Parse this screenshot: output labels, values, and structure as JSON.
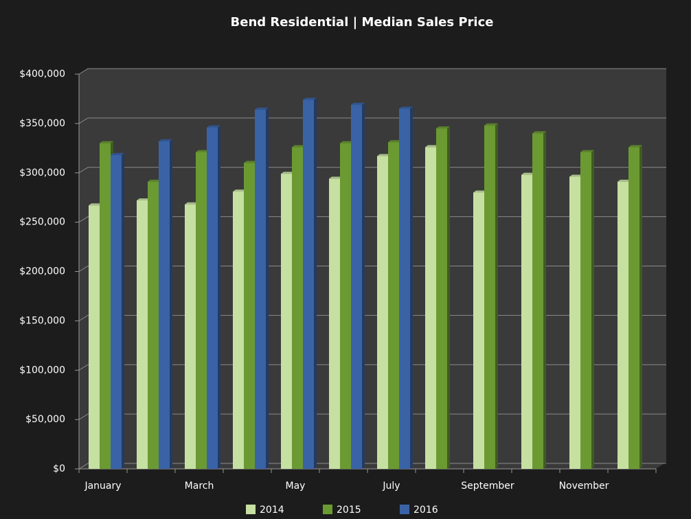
{
  "chart_data": {
    "type": "bar",
    "title": "Bend Residential | Median Sales Price",
    "categories": [
      "January",
      null,
      "March",
      null,
      "May",
      null,
      "July",
      null,
      "September",
      null,
      "November",
      null
    ],
    "series": [
      {
        "name": "2014",
        "color": "#c6e0a2",
        "values": [
          267000,
          272000,
          268000,
          281000,
          299000,
          294000,
          317000,
          326000,
          280000,
          298000,
          296000,
          291000
        ]
      },
      {
        "name": "2015",
        "color": "#6b9a33",
        "values": [
          330000,
          291000,
          321000,
          310000,
          326000,
          330000,
          331000,
          345000,
          348000,
          340000,
          321000,
          326000
        ]
      },
      {
        "name": "2016",
        "color": "#3a63a6",
        "values": [
          318000,
          332000,
          346000,
          364000,
          374000,
          369000,
          365000,
          null,
          null,
          null,
          null,
          null
        ]
      }
    ],
    "ylim": [
      0,
      400000
    ],
    "yticks": [
      {
        "value": 0,
        "label": "$0"
      },
      {
        "value": 50000,
        "label": "$50,000"
      },
      {
        "value": 100000,
        "label": "$100,000"
      },
      {
        "value": 150000,
        "label": "$150,000"
      },
      {
        "value": 200000,
        "label": "$200,000"
      },
      {
        "value": 250000,
        "label": "$250,000"
      },
      {
        "value": 300000,
        "label": "$300,000"
      },
      {
        "value": 350000,
        "label": "$350,000"
      },
      {
        "value": 400000,
        "label": "$400,000"
      }
    ],
    "grid": true,
    "legend": "bottom"
  }
}
